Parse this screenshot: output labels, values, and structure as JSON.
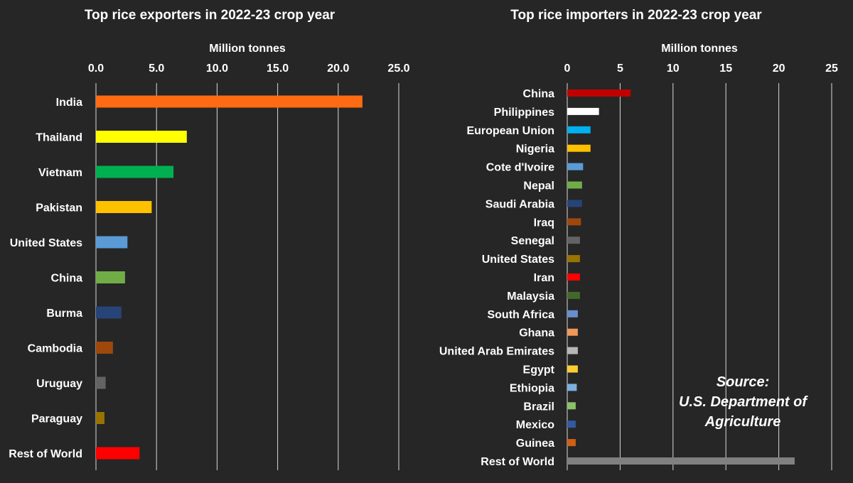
{
  "chart_data": [
    {
      "type": "bar",
      "orientation": "horizontal",
      "title": "Top rice exporters in 2022-23 crop year",
      "xlabel": "Million tonnes",
      "axis_position": "top",
      "xlim": [
        0,
        25
      ],
      "ticks": [
        "0.0",
        "5.0",
        "10.0",
        "15.0",
        "20.0",
        "25.0"
      ],
      "grid": true,
      "categories": [
        "India",
        "Thailand",
        "Vietnam",
        "Pakistan",
        "United States",
        "China",
        "Burma",
        "Cambodia",
        "Uruguay",
        "Paraguay",
        "Rest of World"
      ],
      "values": [
        22.0,
        7.5,
        6.4,
        4.6,
        2.6,
        2.4,
        2.1,
        1.4,
        0.8,
        0.7,
        3.6
      ],
      "colors": [
        "#ff6a13",
        "#ffff00",
        "#00b050",
        "#ffc000",
        "#5b9bd5",
        "#70ad47",
        "#264478",
        "#9e480e",
        "#636363",
        "#997300",
        "#ff0000"
      ]
    },
    {
      "type": "bar",
      "orientation": "horizontal",
      "title": "Top rice importers in 2022-23 crop year",
      "xlabel": "Million tonnes",
      "axis_position": "top",
      "xlim": [
        0,
        25
      ],
      "ticks": [
        "0",
        "5",
        "10",
        "15",
        "20",
        "25"
      ],
      "grid": true,
      "categories": [
        "China",
        "Philippines",
        "European Union",
        "Nigeria",
        "Cote d'Ivoire",
        "Nepal",
        "Saudi Arabia",
        "Iraq",
        "Senegal",
        "United States",
        "Iran",
        "Malaysia",
        "South Africa",
        "Ghana",
        "United Arab Emirates",
        "Egypt",
        "Ethiopia",
        "Brazil",
        "Mexico",
        "Guinea",
        "Rest of World"
      ],
      "values": [
        6.0,
        3.0,
        2.2,
        2.2,
        1.5,
        1.4,
        1.4,
        1.3,
        1.2,
        1.2,
        1.2,
        1.2,
        1.0,
        1.0,
        1.0,
        1.0,
        0.9,
        0.8,
        0.8,
        0.8,
        21.5
      ],
      "colors": [
        "#c00000",
        "#ffffff",
        "#00b0f0",
        "#ffc000",
        "#5b9bd5",
        "#70ad47",
        "#264478",
        "#9e480e",
        "#636363",
        "#997300",
        "#ff0000",
        "#43682b",
        "#698ed0",
        "#f1975a",
        "#b7b7b7",
        "#ffcd33",
        "#7cafdd",
        "#8cc168",
        "#335aa1",
        "#d26012",
        "#808080"
      ]
    }
  ],
  "source": {
    "line1": "Source:",
    "line2": "U.S. Department of",
    "line3": "Agriculture"
  }
}
